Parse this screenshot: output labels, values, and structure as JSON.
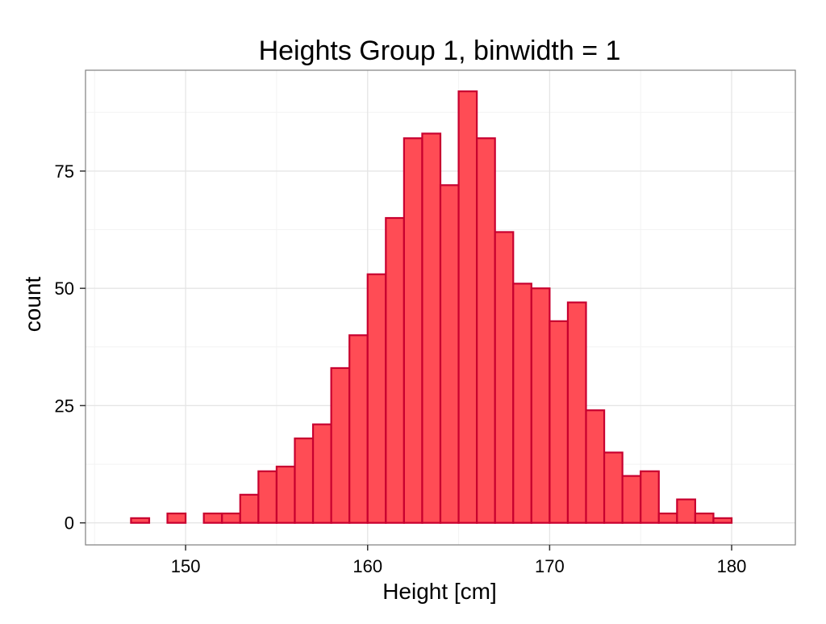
{
  "chart_data": {
    "type": "bar",
    "title": "Heights Group 1, binwidth = 1",
    "xlabel": "Height [cm]",
    "ylabel": "count",
    "xlim": [
      144.5,
      183.5
    ],
    "ylim": [
      -4.7,
      96.5
    ],
    "x_ticks": [
      150,
      160,
      170,
      180
    ],
    "y_ticks": [
      0,
      25,
      50,
      75
    ],
    "grid": true,
    "legend": "none",
    "binwidth": 1,
    "bins": [
      {
        "x": 146.5,
        "count": 0
      },
      {
        "x": 147.5,
        "count": 1
      },
      {
        "x": 148.5,
        "count": 0
      },
      {
        "x": 149.5,
        "count": 2
      },
      {
        "x": 150.5,
        "count": 0
      },
      {
        "x": 151.5,
        "count": 2
      },
      {
        "x": 152.5,
        "count": 2
      },
      {
        "x": 153.5,
        "count": 6
      },
      {
        "x": 154.5,
        "count": 11
      },
      {
        "x": 155.5,
        "count": 12
      },
      {
        "x": 156.5,
        "count": 18
      },
      {
        "x": 157.5,
        "count": 21
      },
      {
        "x": 158.5,
        "count": 33
      },
      {
        "x": 159.5,
        "count": 40
      },
      {
        "x": 160.5,
        "count": 53
      },
      {
        "x": 161.5,
        "count": 65
      },
      {
        "x": 162.5,
        "count": 82
      },
      {
        "x": 163.5,
        "count": 83
      },
      {
        "x": 164.5,
        "count": 72
      },
      {
        "x": 165.5,
        "count": 92
      },
      {
        "x": 166.5,
        "count": 82
      },
      {
        "x": 167.5,
        "count": 62
      },
      {
        "x": 168.5,
        "count": 51
      },
      {
        "x": 169.5,
        "count": 50
      },
      {
        "x": 170.5,
        "count": 43
      },
      {
        "x": 171.5,
        "count": 47
      },
      {
        "x": 172.5,
        "count": 24
      },
      {
        "x": 173.5,
        "count": 15
      },
      {
        "x": 174.5,
        "count": 10
      },
      {
        "x": 175.5,
        "count": 11
      },
      {
        "x": 176.5,
        "count": 2
      },
      {
        "x": 177.5,
        "count": 5
      },
      {
        "x": 178.5,
        "count": 2
      },
      {
        "x": 179.5,
        "count": 1
      },
      {
        "x": 180.5,
        "count": 0
      }
    ],
    "colors": {
      "bar_fill": "#ff4c55",
      "bar_outline": "#c8002f",
      "grid_major": "#e5e5e5",
      "grid_minor": "#f3f3f3",
      "panel_border": "#7f7f7f",
      "text": "#000000"
    }
  }
}
